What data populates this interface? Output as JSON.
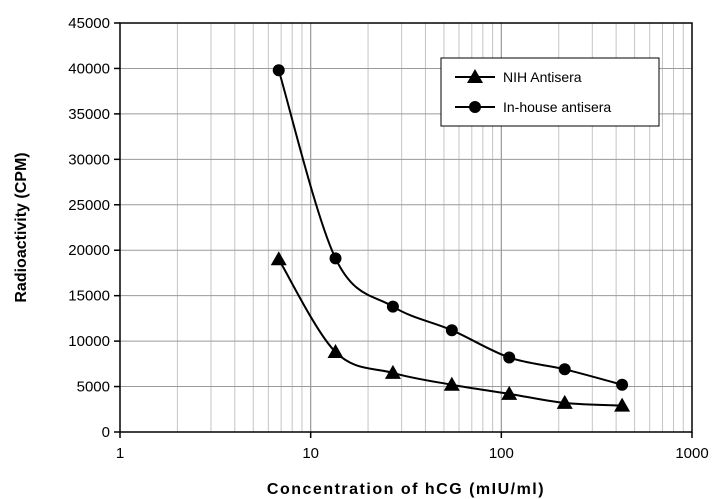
{
  "chart_data": {
    "type": "line",
    "x_scale": "log",
    "xlabel": "Concentration of hCG (mIU/ml)",
    "ylabel": "Radioactivity (CPM)",
    "xlim": [
      1,
      1000
    ],
    "ylim": [
      0,
      45000
    ],
    "x_ticks": [
      "1",
      "10",
      "100",
      "1000"
    ],
    "y_ticks": [
      "0",
      "5000",
      "10000",
      "15000",
      "20000",
      "25000",
      "30000",
      "35000",
      "40000",
      "45000"
    ],
    "grid": true,
    "legend_position": "top-right",
    "series": [
      {
        "name": "NIH Antisera",
        "marker": "triangle",
        "x": [
          6.8,
          13.5,
          27,
          55,
          110,
          215,
          430
        ],
        "y": [
          19000,
          8800,
          6500,
          5200,
          4200,
          3200,
          2900
        ]
      },
      {
        "name": "In-house antisera",
        "marker": "circle",
        "x": [
          6.8,
          13.5,
          27,
          55,
          110,
          215,
          430
        ],
        "y": [
          39800,
          19100,
          13800,
          11200,
          8200,
          6900,
          5200
        ]
      }
    ]
  }
}
